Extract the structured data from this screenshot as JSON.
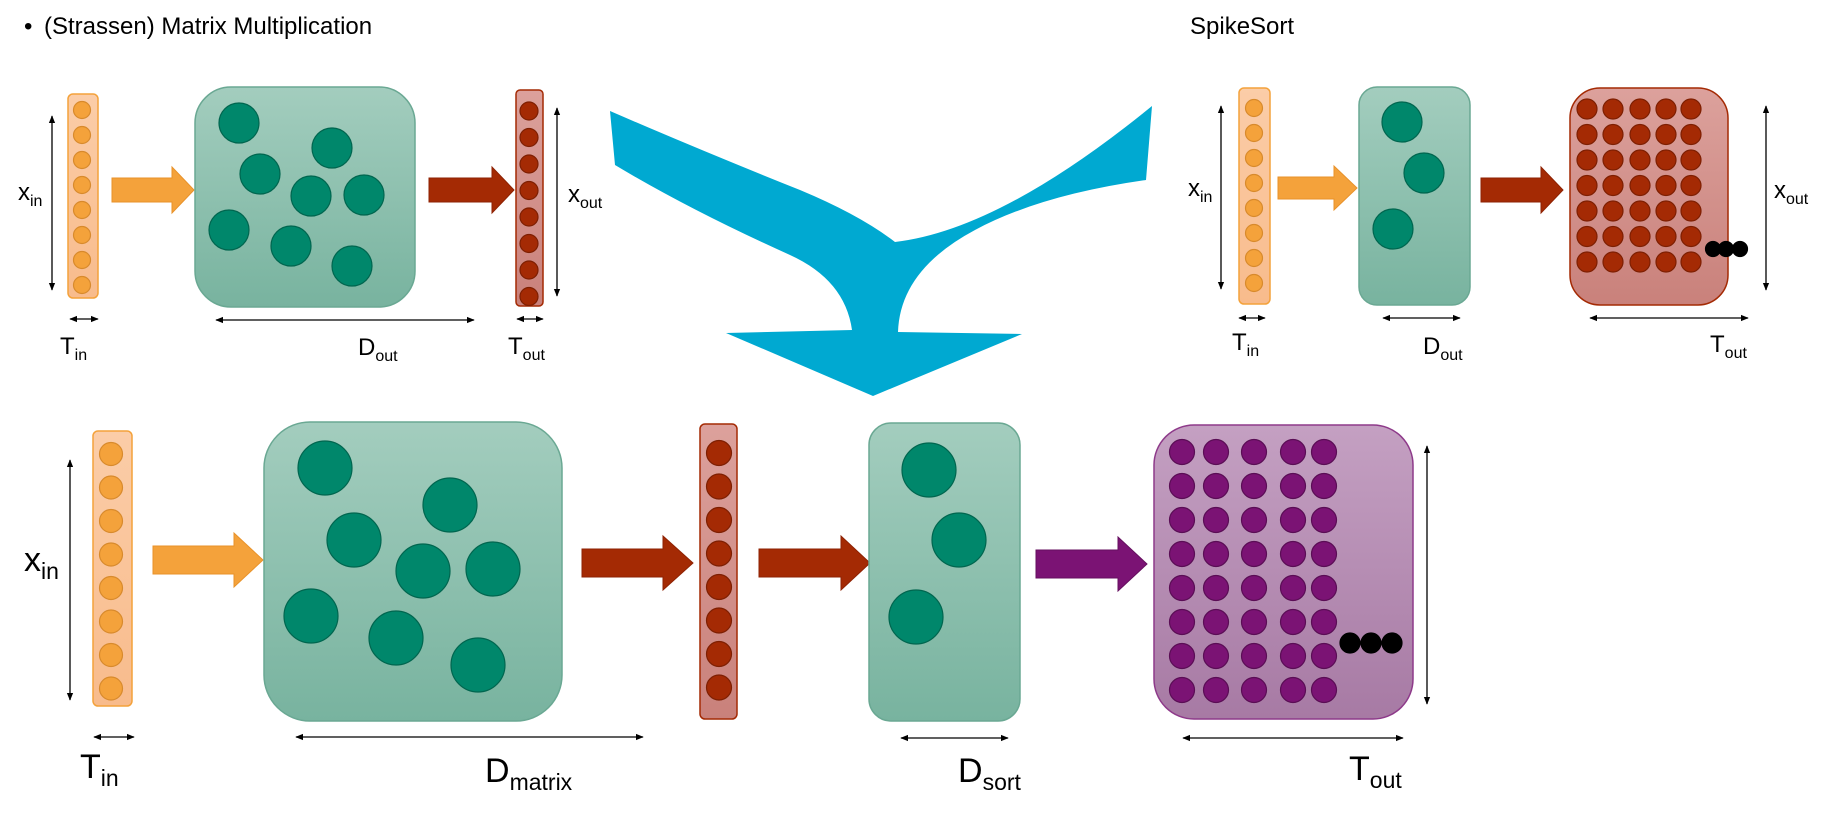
{
  "header": {
    "bullet": "•",
    "left_title": "(Strassen) Matrix Multiplication",
    "right_title": "SpikeSort"
  },
  "labels": {
    "x": "x",
    "in": "in",
    "out": "out",
    "T": "T",
    "D": "D",
    "matrix": "matrix",
    "sort": "sort"
  },
  "colors": {
    "input_fill": "#f9c195",
    "input_neuron": "#f4a23b",
    "input_arrow": "#f4a23b",
    "teal_box": "#86bca9",
    "teal_neuron": "#00876b",
    "red_box": "#d08c86",
    "red_neuron": "#a42a04",
    "purple_box": "#b688b3",
    "purple_neuron": "#7b1374",
    "merge_shape": "#00a9d1"
  },
  "icons": {
    "input_layer": "orange-neuron-column",
    "output_layer": "red-neuron-column",
    "spike_grid": "neuron-grid",
    "ellipsis": "black-dot-ellipsis",
    "merge": "cyan-merge-arrow"
  }
}
